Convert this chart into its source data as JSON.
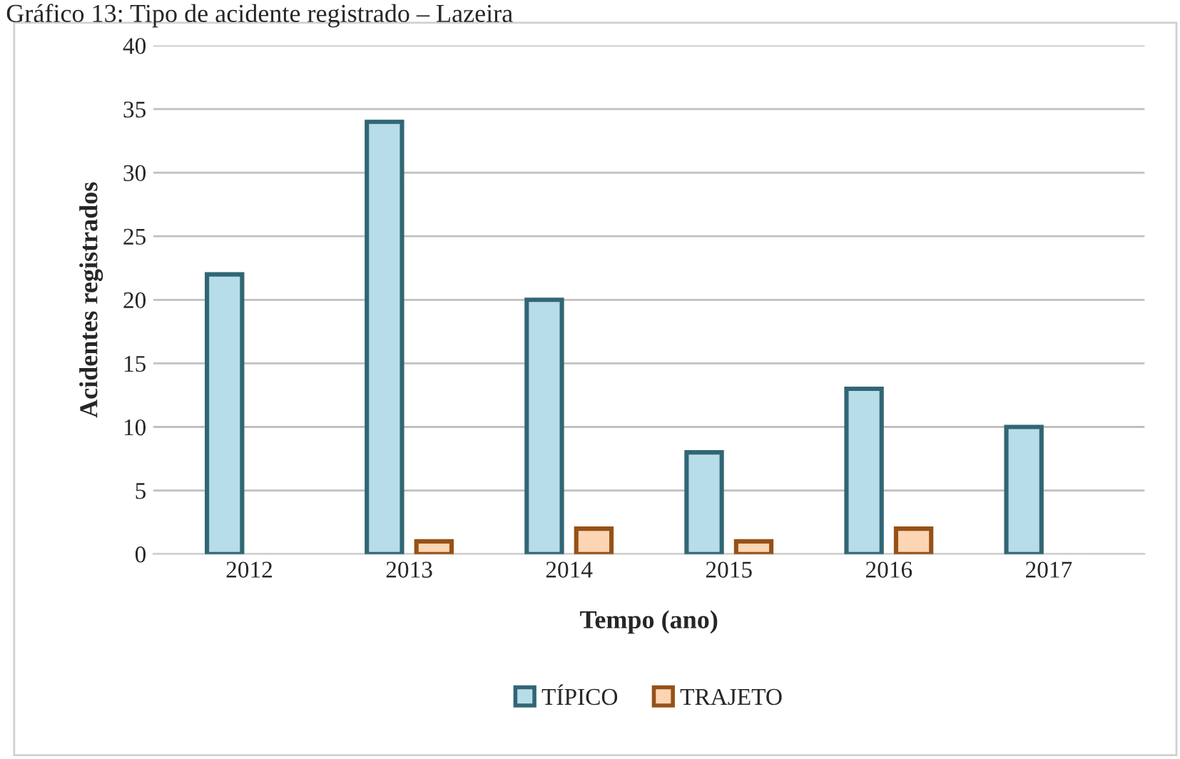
{
  "chart_data": {
    "type": "bar",
    "title": "Gráfico 13: Tipo de acidente registrado – Lazeira",
    "xlabel": "Tempo (ano)",
    "ylabel": "Acidentes registrados",
    "categories": [
      "2012",
      "2013",
      "2014",
      "2015",
      "2016",
      "2017"
    ],
    "series": [
      {
        "name": "TÍPICO",
        "color": "#b7dde8",
        "values": [
          22,
          34,
          20,
          8,
          13,
          10
        ]
      },
      {
        "name": "TRAJETO",
        "color": "#fcd5b4",
        "values": [
          null,
          1,
          2,
          1,
          2,
          null
        ]
      }
    ],
    "ylim": [
      0,
      40
    ],
    "yticks": [
      0,
      5,
      10,
      15,
      20,
      25,
      30,
      35,
      40
    ],
    "grid": "y",
    "legend": "bottom"
  }
}
